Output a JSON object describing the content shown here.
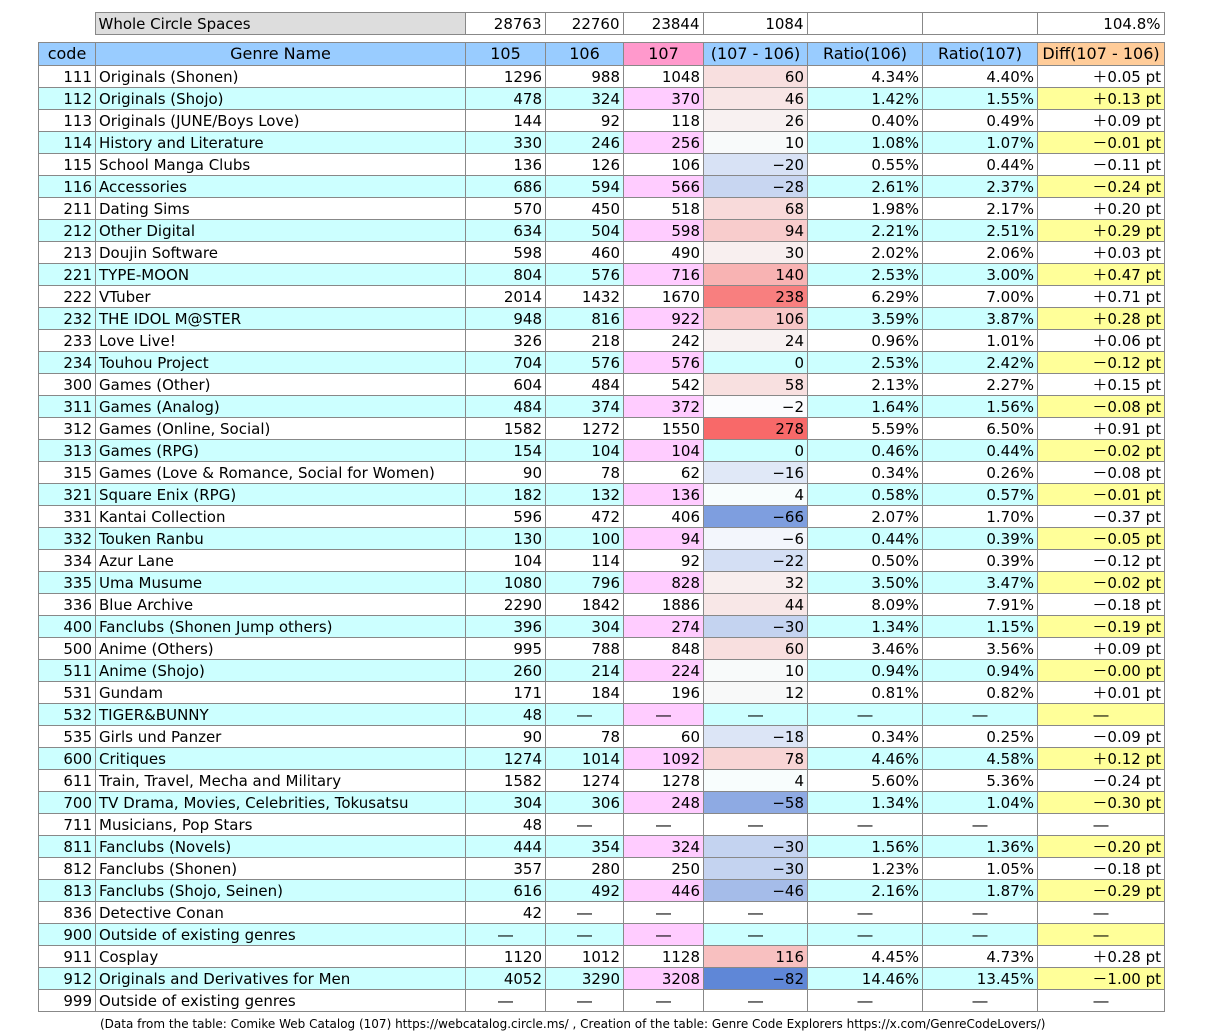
{
  "summary": {
    "label": "Whole Circle Spaces",
    "values": [
      "28763",
      "22760",
      "23844",
      "1084",
      "104.8%"
    ]
  },
  "header": [
    "code",
    "Genre  Name",
    "105",
    "106",
    "107",
    "(107 - 106)",
    "Ratio(106)",
    "Ratio(107)",
    "Diff(107 - 106)"
  ],
  "rows": [
    [
      "111",
      "Originals (Shonen)",
      "1296",
      "988",
      "1048",
      "60",
      "4.34%",
      "4.40%",
      "＋0.05 pt"
    ],
    [
      "112",
      "Originals (Shojo)",
      "478",
      "324",
      "370",
      "46",
      "1.42%",
      "1.55%",
      "＋0.13 pt"
    ],
    [
      "113",
      "Originals (JUNE/Boys Love)",
      "144",
      "92",
      "118",
      "26",
      "0.40%",
      "0.49%",
      "＋0.09 pt"
    ],
    [
      "114",
      "History and Literature",
      "330",
      "246",
      "256",
      "10",
      "1.08%",
      "1.07%",
      "－0.01 pt"
    ],
    [
      "115",
      "School Manga Clubs",
      "136",
      "126",
      "106",
      "−20",
      "0.55%",
      "0.44%",
      "－0.11 pt"
    ],
    [
      "116",
      "Accessories",
      "686",
      "594",
      "566",
      "−28",
      "2.61%",
      "2.37%",
      "－0.24 pt"
    ],
    [
      "211",
      "Dating Sims",
      "570",
      "450",
      "518",
      "68",
      "1.98%",
      "2.17%",
      "＋0.20 pt"
    ],
    [
      "212",
      "Other Digital",
      "634",
      "504",
      "598",
      "94",
      "2.21%",
      "2.51%",
      "＋0.29 pt"
    ],
    [
      "213",
      "Doujin Software",
      "598",
      "460",
      "490",
      "30",
      "2.02%",
      "2.06%",
      "＋0.03 pt"
    ],
    [
      "221",
      "TYPE-MOON",
      "804",
      "576",
      "716",
      "140",
      "2.53%",
      "3.00%",
      "＋0.47 pt"
    ],
    [
      "222",
      "VTuber",
      "2014",
      "1432",
      "1670",
      "238",
      "6.29%",
      "7.00%",
      "＋0.71 pt"
    ],
    [
      "232",
      "THE IDOL M@STER",
      "948",
      "816",
      "922",
      "106",
      "3.59%",
      "3.87%",
      "＋0.28 pt"
    ],
    [
      "233",
      "Love Live!",
      "326",
      "218",
      "242",
      "24",
      "0.96%",
      "1.01%",
      "＋0.06 pt"
    ],
    [
      "234",
      "Touhou Project",
      "704",
      "576",
      "576",
      "0",
      "2.53%",
      "2.42%",
      "－0.12 pt"
    ],
    [
      "300",
      "Games (Other)",
      "604",
      "484",
      "542",
      "58",
      "2.13%",
      "2.27%",
      "＋0.15 pt"
    ],
    [
      "311",
      "Games (Analog)",
      "484",
      "374",
      "372",
      "−2",
      "1.64%",
      "1.56%",
      "－0.08 pt"
    ],
    [
      "312",
      "Games (Online, Social)",
      "1582",
      "1272",
      "1550",
      "278",
      "5.59%",
      "6.50%",
      "＋0.91 pt"
    ],
    [
      "313",
      "Games (RPG)",
      "154",
      "104",
      "104",
      "0",
      "0.46%",
      "0.44%",
      "－0.02 pt"
    ],
    [
      "315",
      "Games (Love & Romance, Social for Women)",
      "90",
      "78",
      "62",
      "−16",
      "0.34%",
      "0.26%",
      "－0.08 pt"
    ],
    [
      "321",
      "Square Enix (RPG)",
      "182",
      "132",
      "136",
      "4",
      "0.58%",
      "0.57%",
      "－0.01 pt"
    ],
    [
      "331",
      "Kantai Collection",
      "596",
      "472",
      "406",
      "−66",
      "2.07%",
      "1.70%",
      "－0.37 pt"
    ],
    [
      "332",
      "Touken Ranbu",
      "130",
      "100",
      "94",
      "−6",
      "0.44%",
      "0.39%",
      "－0.05 pt"
    ],
    [
      "334",
      "Azur Lane",
      "104",
      "114",
      "92",
      "−22",
      "0.50%",
      "0.39%",
      "－0.12 pt"
    ],
    [
      "335",
      "Uma Musume",
      "1080",
      "796",
      "828",
      "32",
      "3.50%",
      "3.47%",
      "－0.02 pt"
    ],
    [
      "336",
      "Blue Archive",
      "2290",
      "1842",
      "1886",
      "44",
      "8.09%",
      "7.91%",
      "－0.18 pt"
    ],
    [
      "400",
      "Fanclubs (Shonen Jump others)",
      "396",
      "304",
      "274",
      "−30",
      "1.34%",
      "1.15%",
      "－0.19 pt"
    ],
    [
      "500",
      "Anime (Others)",
      "995",
      "788",
      "848",
      "60",
      "3.46%",
      "3.56%",
      "＋0.09 pt"
    ],
    [
      "511",
      "Anime (Shojo)",
      "260",
      "214",
      "224",
      "10",
      "0.94%",
      "0.94%",
      "－0.00 pt"
    ],
    [
      "531",
      "Gundam",
      "171",
      "184",
      "196",
      "12",
      "0.81%",
      "0.82%",
      "＋0.01 pt"
    ],
    [
      "532",
      "TIGER&BUNNY",
      "48",
      "―",
      "―",
      "―",
      "―",
      "―",
      "―"
    ],
    [
      "535",
      "Girls und Panzer",
      "90",
      "78",
      "60",
      "−18",
      "0.34%",
      "0.25%",
      "－0.09 pt"
    ],
    [
      "600",
      "Critiques",
      "1274",
      "1014",
      "1092",
      "78",
      "4.46%",
      "4.58%",
      "＋0.12 pt"
    ],
    [
      "611",
      "Train, Travel, Mecha and Military",
      "1582",
      "1274",
      "1278",
      "4",
      "5.60%",
      "5.36%",
      "－0.24 pt"
    ],
    [
      "700",
      "TV Drama, Movies, Celebrities, Tokusatsu",
      "304",
      "306",
      "248",
      "−58",
      "1.34%",
      "1.04%",
      "－0.30 pt"
    ],
    [
      "711",
      "Musicians, Pop Stars",
      "48",
      "―",
      "―",
      "―",
      "―",
      "―",
      "―"
    ],
    [
      "811",
      "Fanclubs (Novels)",
      "444",
      "354",
      "324",
      "−30",
      "1.56%",
      "1.36%",
      "－0.20 pt"
    ],
    [
      "812",
      "Fanclubs (Shonen)",
      "357",
      "280",
      "250",
      "−30",
      "1.23%",
      "1.05%",
      "－0.18 pt"
    ],
    [
      "813",
      "Fanclubs (Shojo, Seinen)",
      "616",
      "492",
      "446",
      "−46",
      "2.16%",
      "1.87%",
      "－0.29 pt"
    ],
    [
      "836",
      "Detective Conan",
      "42",
      "―",
      "―",
      "―",
      "―",
      "―",
      "―"
    ],
    [
      "900",
      "Outside of existing genres",
      "―",
      "―",
      "―",
      "―",
      "―",
      "―",
      "―"
    ],
    [
      "911",
      "Cosplay",
      "1120",
      "1012",
      "1128",
      "116",
      "4.45%",
      "4.73%",
      "＋0.28 pt"
    ],
    [
      "912",
      "Originals and Derivatives for Men",
      "4052",
      "3290",
      "3208",
      "−82",
      "14.46%",
      "13.45%",
      "－1.00 pt"
    ],
    [
      "999",
      "Outside of existing genres",
      "―",
      "―",
      "―",
      "―",
      "―",
      "―",
      "―"
    ]
  ],
  "footer": "(Data from the table: Comike Web Catalog (107) https://webcatalog.circle.ms/ , Creation of the table: Genre Code Explorers https://x.com/GenreCodeLovers/)"
}
